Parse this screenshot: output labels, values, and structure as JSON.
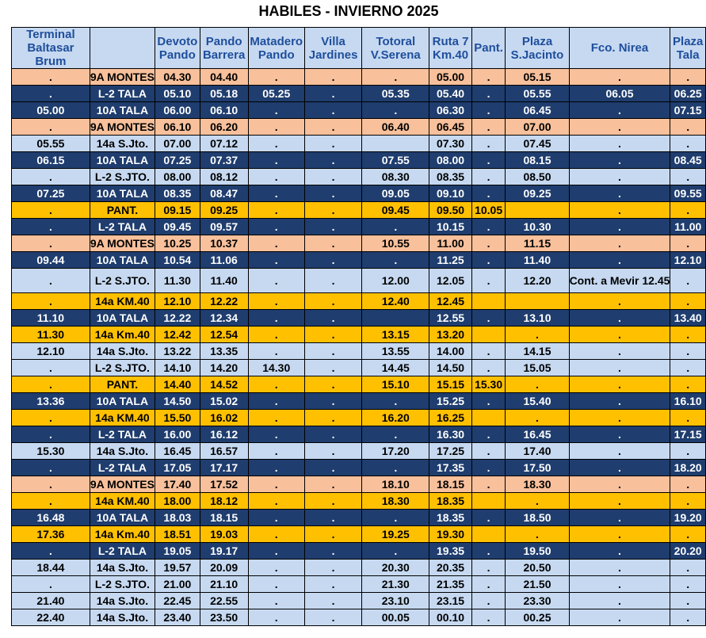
{
  "title": "HABILES - INVIERNO 2025",
  "headers": [
    "Terminal Baltasar Brum",
    "",
    "Devoto Pando",
    "Pando Barrera",
    "Matadero Pando",
    "Villa Jardines",
    "Totoral V.Serena",
    "Ruta 7 Km.40",
    "Pant.",
    "Plaza S.Jacinto",
    "Fco. Nirea",
    "Plaza Tala"
  ],
  "colors": {
    "navy": "#1f3d6e",
    "light_blue": "#c6d9f1",
    "orange": "#f8c09b",
    "yellow": "#ffc000",
    "header_text": "#1f4e9c"
  },
  "rows": [
    {
      "style": "orange",
      "cells": [
        ".",
        "9A MONTES",
        "04.30",
        "04.40",
        ".",
        ".",
        ".",
        "05.00",
        ".",
        "05.15",
        ".",
        "."
      ]
    },
    {
      "style": "navy",
      "cells": [
        ".",
        "L-2 TALA",
        "05.10",
        "05.18",
        "05.25",
        ".",
        "05.35",
        "05.40",
        ".",
        "05.55",
        "06.05",
        "06.25"
      ]
    },
    {
      "style": "navy",
      "cells": [
        "05.00",
        "10A TALA",
        "06.00",
        "06.10",
        ".",
        ".",
        ".",
        "06.30",
        ".",
        "06.45",
        ".",
        "07.15"
      ]
    },
    {
      "style": "orange",
      "cells": [
        ".",
        "9A MONTES",
        "06.10",
        "06.20",
        ".",
        ".",
        "06.40",
        "06.45",
        ".",
        "07.00",
        ".",
        "."
      ]
    },
    {
      "style": "light",
      "cells": [
        "05.55",
        "14a S.Jto.",
        "07.00",
        "07.12",
        ".",
        ".",
        "",
        "07.30",
        ".",
        "07.45",
        ".",
        "."
      ]
    },
    {
      "style": "navy",
      "cells": [
        "06.15",
        "10A TALA",
        "07.25",
        "07.37",
        ".",
        ".",
        "07.55",
        "08.00",
        ".",
        "08.15",
        ".",
        "08.45"
      ]
    },
    {
      "style": "light",
      "cells": [
        ".",
        "L-2 S.JTO.",
        "08.00",
        "08.12",
        ".",
        ".",
        "08.30",
        "08.35",
        ".",
        "08.50",
        ".",
        "."
      ]
    },
    {
      "style": "navy",
      "cells": [
        "07.25",
        "10A TALA",
        "08.35",
        "08.47",
        ".",
        ".",
        "09.05",
        "09.10",
        ".",
        "09.25",
        ".",
        "09.55"
      ]
    },
    {
      "style": "yellow",
      "cells": [
        ".",
        "PANT.",
        "09.15",
        "09.25",
        ".",
        ".",
        "09.45",
        "09.50",
        "10.05",
        "",
        ".",
        "."
      ]
    },
    {
      "style": "navy",
      "cells": [
        ".",
        "L-2 TALA",
        "09.45",
        "09.57",
        ".",
        ".",
        ".",
        "10.15",
        ".",
        "10.30",
        ".",
        "11.00"
      ]
    },
    {
      "style": "orange",
      "cells": [
        ".",
        "9A MONTES",
        "10.25",
        "10.37",
        ".",
        ".",
        "10.55",
        "11.00",
        ".",
        "11.15",
        ".",
        "."
      ]
    },
    {
      "style": "navy",
      "cells": [
        "09.44",
        "10A TALA",
        "10.54",
        "11.06",
        ".",
        ".",
        ".",
        "11.25",
        ".",
        "11.40",
        ".",
        "12.10"
      ]
    },
    {
      "style": "light",
      "tall": true,
      "center_line": true,
      "cells": [
        ".",
        "L-2 S.JTO.",
        "11.30",
        "11.40",
        ".",
        ".",
        "12.00",
        "12.05",
        ".",
        "12.20",
        "Cont. a Mevir 12.45",
        "."
      ]
    },
    {
      "style": "yellow",
      "cells": [
        ".",
        "14a KM.40",
        "12.10",
        "12.22",
        ".",
        ".",
        "12.40",
        "12.45",
        "",
        "",
        ".",
        "."
      ]
    },
    {
      "style": "navy",
      "cells": [
        "11.10",
        "10A TALA",
        "12.22",
        "12.34",
        ".",
        ".",
        "",
        "12.55",
        ".",
        "13.10",
        ".",
        "13.40"
      ]
    },
    {
      "style": "yellow",
      "cells": [
        "11.30",
        "14a Km.40",
        "12.42",
        "12.54",
        ".",
        ".",
        "13.15",
        "13.20",
        "",
        ".",
        ".",
        "."
      ]
    },
    {
      "style": "light",
      "cells": [
        "12.10",
        "14a S.Jto.",
        "13.22",
        "13.35",
        ".",
        ".",
        "13.55",
        "14.00",
        ".",
        "14.15",
        ".",
        "."
      ]
    },
    {
      "style": "light",
      "cells": [
        ".",
        "L-2 S.JTO.",
        "14.10",
        "14.20",
        "14.30",
        ".",
        "14.45",
        "14.50",
        ".",
        "15.05",
        ".",
        "."
      ]
    },
    {
      "style": "yellow",
      "cells": [
        ".",
        "PANT.",
        "14.40",
        "14.52",
        ".",
        ".",
        "15.10",
        "15.15",
        "15.30",
        ".",
        ".",
        "."
      ]
    },
    {
      "style": "navy",
      "cells": [
        "13.36",
        "10A TALA",
        "14.50",
        "15.02",
        ".",
        ".",
        ".",
        "15.25",
        ".",
        "15.40",
        ".",
        "16.10"
      ]
    },
    {
      "style": "yellow",
      "cells": [
        ".",
        "14a KM.40",
        "15.50",
        "16.02",
        ".",
        ".",
        "16.20",
        "16.25",
        "",
        ".",
        ".",
        "."
      ]
    },
    {
      "style": "navy",
      "cells": [
        ".",
        "L-2 TALA",
        "16.00",
        "16.12",
        ".",
        ".",
        ".",
        "16.30",
        ".",
        "16.45",
        ".",
        "17.15"
      ]
    },
    {
      "style": "light",
      "cells": [
        "15.30",
        "14a S.Jto.",
        "16.45",
        "16.57",
        ".",
        ".",
        "17.20",
        "17.25",
        ".",
        "17.40",
        ".",
        "."
      ]
    },
    {
      "style": "navy",
      "cells": [
        ".",
        "L-2 TALA",
        "17.05",
        "17.17",
        ".",
        ".",
        ".",
        "17.35",
        ".",
        "17.50",
        ".",
        "18.20"
      ]
    },
    {
      "style": "orange",
      "cells": [
        ".",
        "9A MONTES",
        "17.40",
        "17.52",
        ".",
        ".",
        "18.10",
        "18.15",
        ".",
        "18.30",
        ".",
        "."
      ]
    },
    {
      "style": "yellow",
      "cells": [
        ".",
        "14a KM.40",
        "18.00",
        "18.12",
        ".",
        ".",
        "18.30",
        "18.35",
        "",
        ".",
        ".",
        "."
      ]
    },
    {
      "style": "navy",
      "cells": [
        "16.48",
        "10A TALA",
        "18.03",
        "18.15",
        ".",
        ".",
        ".",
        "18.35",
        ".",
        "18.50",
        ".",
        "19.20"
      ]
    },
    {
      "style": "yellow",
      "cells": [
        "17.36",
        "14a Km.40",
        "18.51",
        "19.03",
        ".",
        ".",
        "19.25",
        "19.30",
        "",
        ".",
        ".",
        "."
      ]
    },
    {
      "style": "navy",
      "cells": [
        ".",
        "L-2 TALA",
        "19.05",
        "19.17",
        ".",
        ".",
        ".",
        "19.35",
        ".",
        "19.50",
        ".",
        "20.20"
      ]
    },
    {
      "style": "light",
      "cells": [
        "18.44",
        "14a S.Jto.",
        "19.57",
        "20.09",
        ".",
        ".",
        "20.30",
        "20.35",
        ".",
        "20.50",
        ".",
        "."
      ]
    },
    {
      "style": "light",
      "cells": [
        ".",
        "L-2 S.JTO.",
        "21.00",
        "21.10",
        ".",
        ".",
        "21.30",
        "21.35",
        ".",
        "21.50",
        ".",
        "."
      ]
    },
    {
      "style": "light",
      "cells": [
        "21.40",
        "14a S.Jto.",
        "22.45",
        "22.55",
        ".",
        ".",
        "23.10",
        "23.15",
        ".",
        "23.30",
        ".",
        "."
      ]
    },
    {
      "style": "light",
      "cells": [
        "22.40",
        "14a S.Jto.",
        "23.40",
        "23.50",
        ".",
        ".",
        "00.05",
        "00.10",
        ".",
        "00.25",
        ".",
        "."
      ]
    }
  ]
}
